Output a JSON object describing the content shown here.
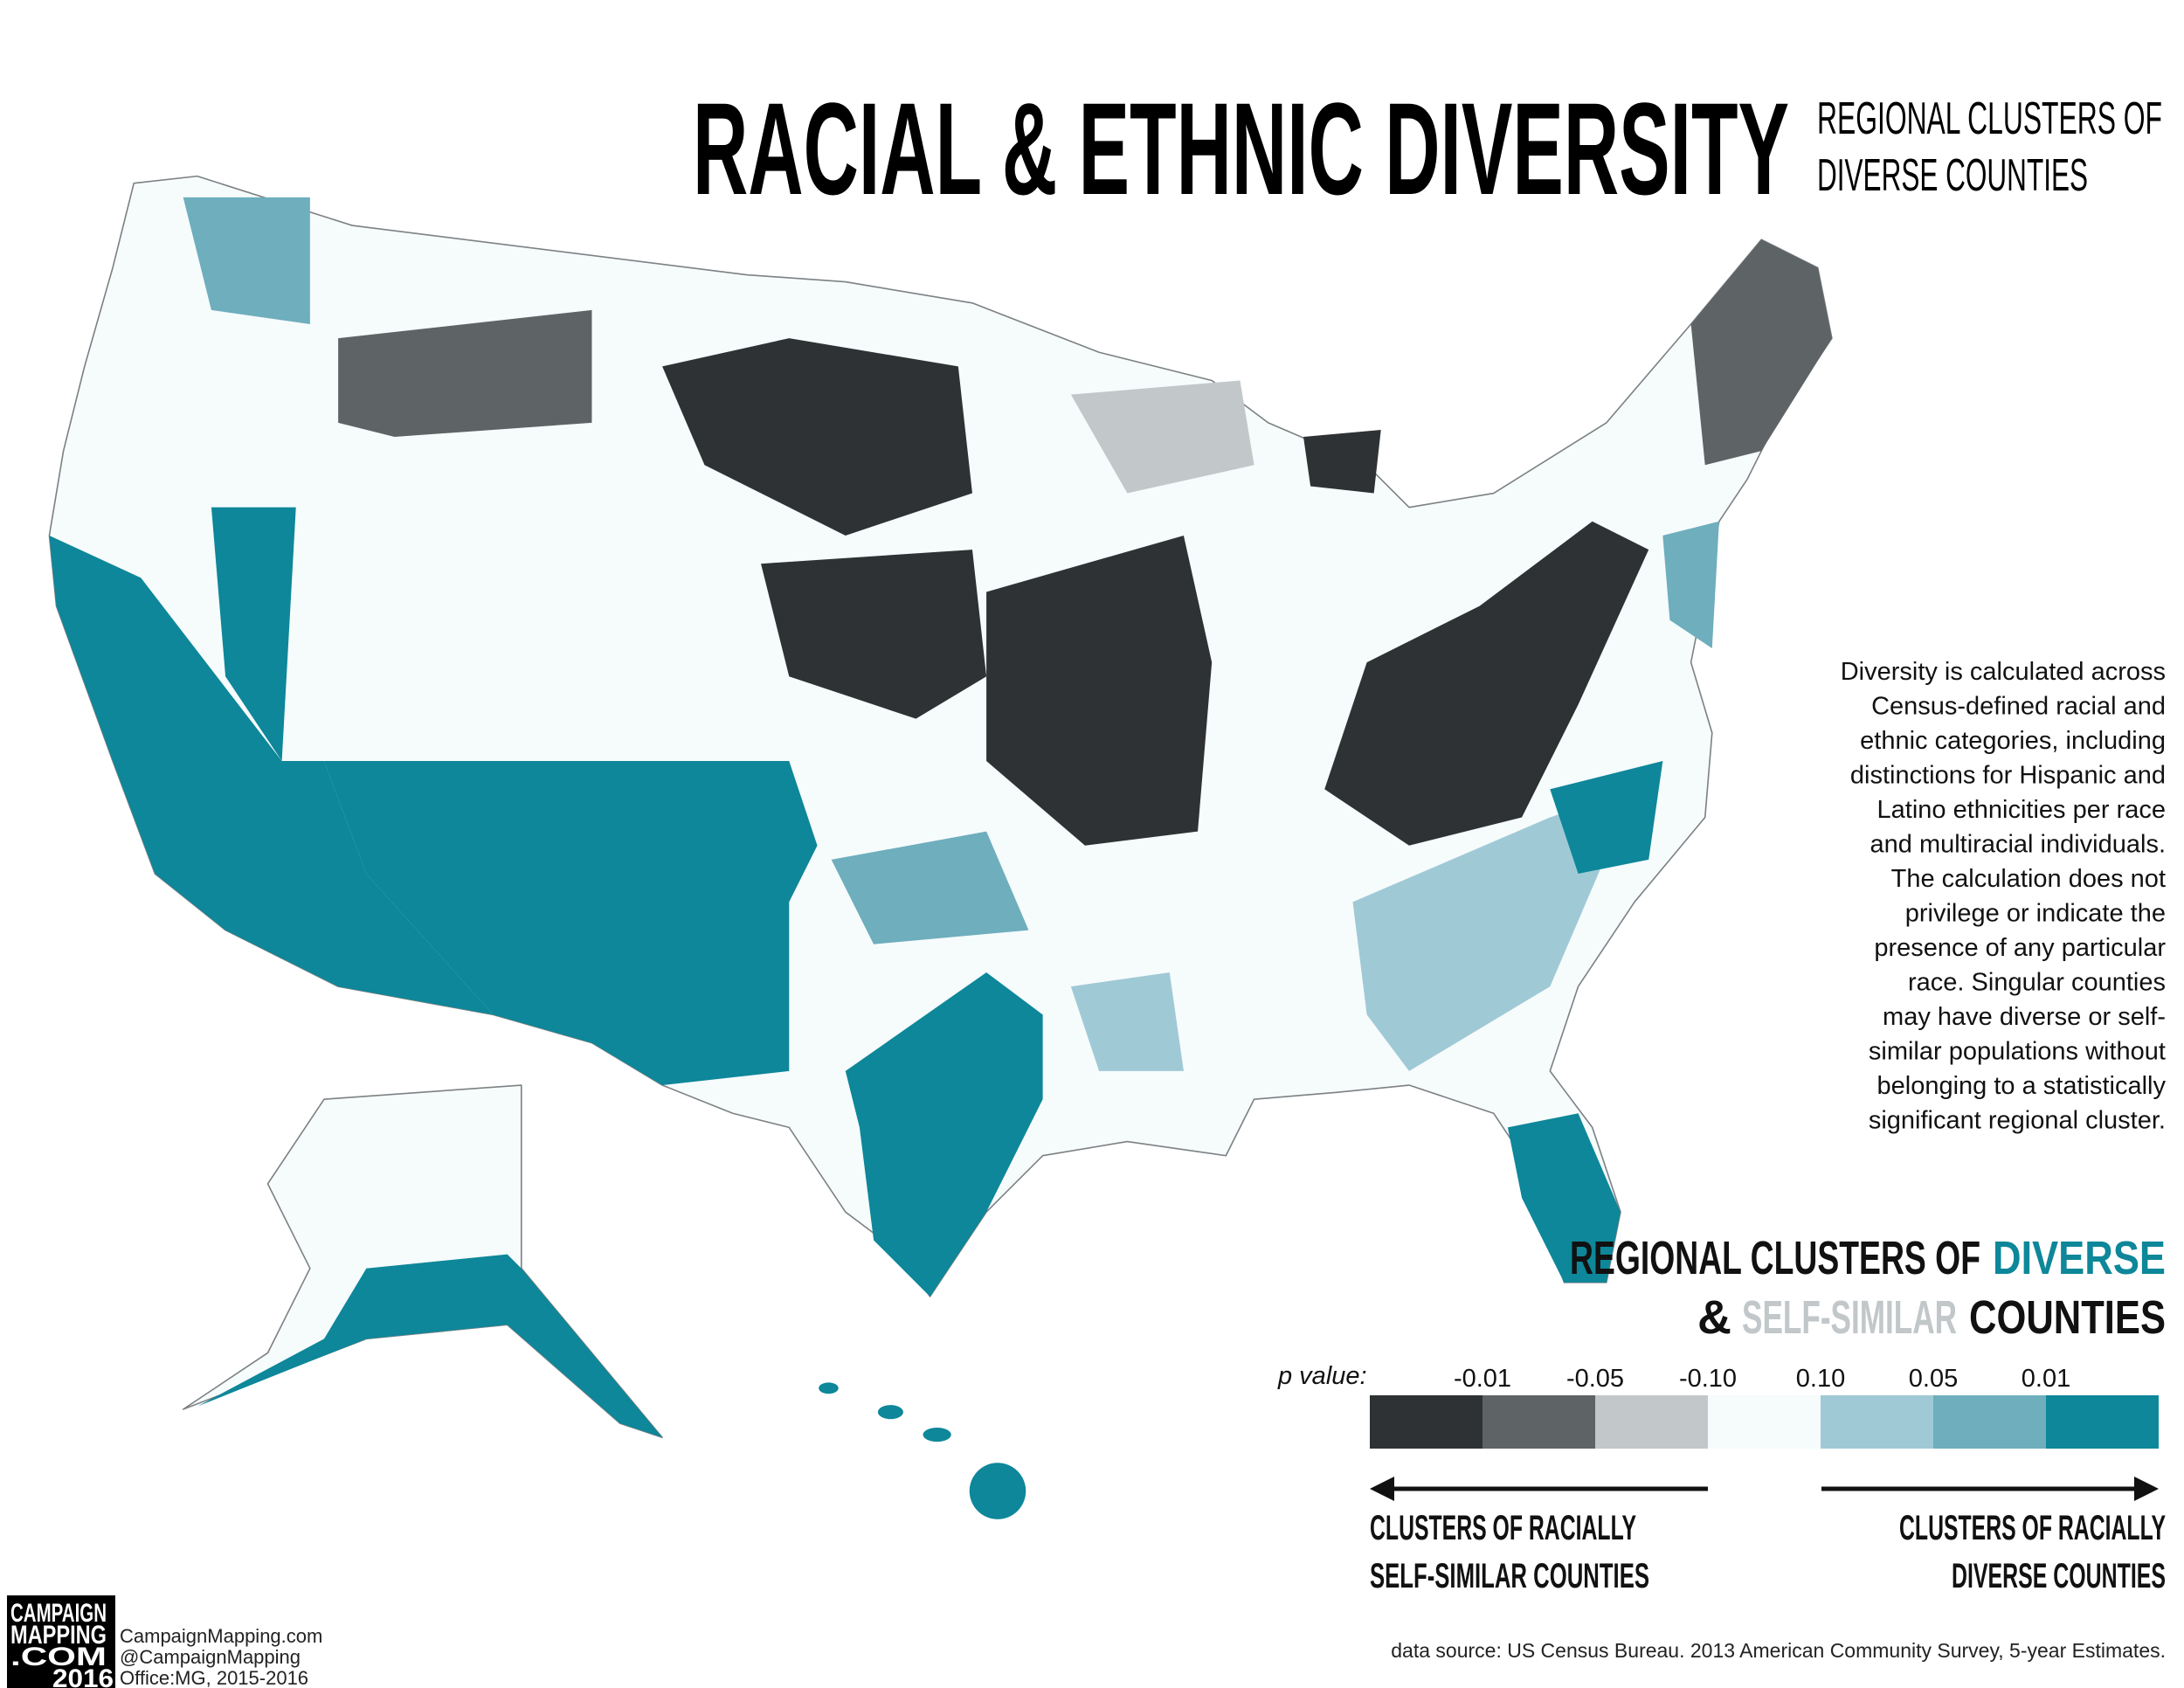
{
  "header": {
    "title": "RACIAL & ETHNIC DIVERSITY",
    "subtitle": [
      "REGIONAL CLUSTERS OF",
      "DIVERSE COUNTIES"
    ]
  },
  "description": [
    "Diversity is calculated across",
    "Census-defined racial and",
    "ethnic categories, including",
    "distinctions for Hispanic and",
    "Latino ethnicities per race",
    "and multiracial individuals.",
    "The calculation does not",
    "privilege or indicate the",
    "presence of any particular",
    "race. Singular counties",
    "may have diverse or self-",
    "similar populations without",
    "belonging to a statistically",
    "significant regional cluster."
  ],
  "legend": {
    "title_line1": [
      "REGIONAL CLUSTERS OF",
      "DIVERSE"
    ],
    "title_line2": [
      "&",
      "SELF-SIMILAR",
      "COUNTIES"
    ],
    "p_label": "p value:",
    "breaks": [
      "-0.01",
      "-0.05",
      "-0.10",
      "0.10",
      "0.05",
      "0.01"
    ],
    "colors": [
      "#2f3234",
      "#5e6466",
      "#c2c7ca",
      "#f6fbfc",
      "#a0c9d6",
      "#6eaebd",
      "#0d8799"
    ],
    "left_label": [
      "CLUSTERS OF RACIALLY",
      "SELF-SIMILAR COUNTIES"
    ],
    "right_label": [
      "CLUSTERS OF RACIALLY",
      "DIVERSE COUNTIES"
    ]
  },
  "credits": {
    "logo": [
      "CAMPAIGN",
      "MAPPING",
      ".COM",
      "2016"
    ],
    "lines": [
      "CampaignMapping.com",
      "@CampaignMapping",
      "Office:MG, 2015-2016"
    ]
  },
  "source": "data source: US Census Bureau. 2013 American Community Survey, 5-year Estimates."
}
